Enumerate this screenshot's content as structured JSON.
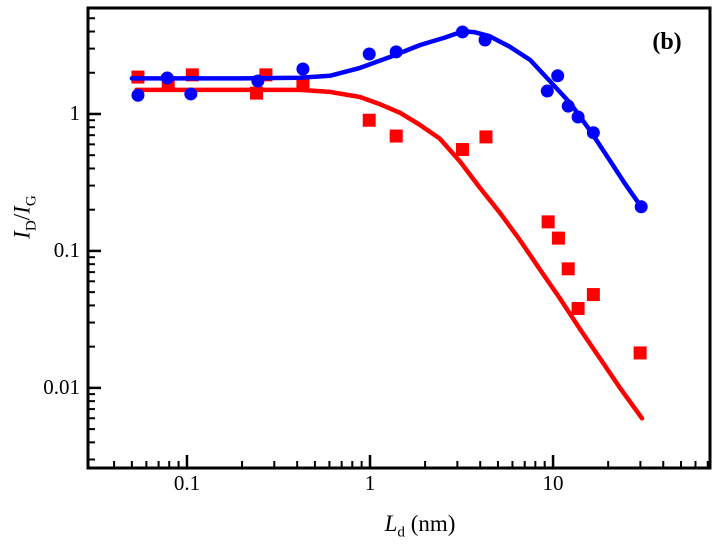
{
  "figure": {
    "panel_label": "(b)",
    "background_color": "#ffffff",
    "axis_color": "#000000"
  },
  "chart_data": {
    "type": "scatter",
    "title": "",
    "xlabel": "L_d (nm)",
    "ylabel": "I_D/I_G",
    "xlabel_parts": {
      "symbol": "L",
      "sub": "d",
      "unit": " (nm)"
    },
    "ylabel_parts": {
      "num": "I",
      "num_sub": "D",
      "slash": "/",
      "den": "I",
      "den_sub": "G"
    },
    "xscale": "log",
    "yscale": "log",
    "xlim": [
      0.0288,
      72
    ],
    "ylim": [
      0.0026,
      5.94
    ],
    "grid": false,
    "legend": "none",
    "x_major_ticks": [
      {
        "value": 0.1,
        "label": "0.1"
      },
      {
        "value": 1,
        "label": "1"
      },
      {
        "value": 10,
        "label": "10"
      }
    ],
    "x_minor_ticks": [
      0.04,
      0.05,
      0.06,
      0.07,
      0.08,
      0.09,
      0.2,
      0.3,
      0.4,
      0.5,
      0.6,
      0.7,
      0.8,
      0.9,
      2,
      3,
      4,
      5,
      6,
      7,
      8,
      9,
      20,
      30,
      40,
      50,
      60,
      70
    ],
    "y_major_ticks": [
      {
        "value": 1,
        "label": "1"
      },
      {
        "value": 0.1,
        "label": "0.1"
      },
      {
        "value": 0.01,
        "label": "0.01"
      }
    ],
    "y_minor_ticks": [
      0.003,
      0.004,
      0.005,
      0.006,
      0.007,
      0.008,
      0.009,
      0.02,
      0.03,
      0.04,
      0.05,
      0.06,
      0.07,
      0.08,
      0.09,
      0.2,
      0.3,
      0.4,
      0.5,
      0.6,
      0.7,
      0.8,
      0.9,
      2,
      3,
      4,
      5
    ],
    "series": [
      {
        "name": "red-squares-data",
        "type": "scatter",
        "marker": "square",
        "color": "#ff0000",
        "points": [
          [
            0.054,
            1.86
          ],
          [
            0.079,
            1.66
          ],
          [
            0.107,
            1.93
          ],
          [
            0.24,
            1.42
          ],
          [
            0.27,
            1.93
          ],
          [
            0.43,
            1.66
          ],
          [
            0.99,
            0.9
          ],
          [
            1.39,
            0.69
          ],
          [
            3.2,
            0.55
          ],
          [
            4.3,
            0.68
          ],
          [
            9.4,
            0.163
          ],
          [
            10.7,
            0.124
          ],
          [
            12.1,
            0.074
          ],
          [
            13.7,
            0.038
          ],
          [
            16.6,
            0.048
          ],
          [
            29.9,
            0.018
          ]
        ]
      },
      {
        "name": "red-fit-curve",
        "type": "line",
        "color": "#ff0000",
        "points": [
          [
            0.053,
            1.5
          ],
          [
            0.1,
            1.5
          ],
          [
            0.2,
            1.5
          ],
          [
            0.3,
            1.5
          ],
          [
            0.414,
            1.5
          ],
          [
            0.604,
            1.45
          ],
          [
            0.882,
            1.33
          ],
          [
            1.13,
            1.18
          ],
          [
            1.46,
            1.02
          ],
          [
            1.88,
            0.83
          ],
          [
            2.41,
            0.66
          ],
          [
            3.1,
            0.45
          ],
          [
            3.98,
            0.29
          ],
          [
            5.12,
            0.19
          ],
          [
            6.59,
            0.12
          ],
          [
            8.48,
            0.073
          ],
          [
            10.9,
            0.045
          ],
          [
            14.0,
            0.027
          ],
          [
            18.0,
            0.0165
          ],
          [
            23.2,
            0.01
          ],
          [
            30.6,
            0.006
          ]
        ]
      },
      {
        "name": "blue-fit-curve",
        "type": "line",
        "color": "#0000ff",
        "points": [
          [
            0.05,
            1.82
          ],
          [
            0.1,
            1.82
          ],
          [
            0.2,
            1.82
          ],
          [
            0.3,
            1.83
          ],
          [
            0.414,
            1.84
          ],
          [
            0.604,
            1.9
          ],
          [
            0.882,
            2.17
          ],
          [
            1.29,
            2.61
          ],
          [
            1.88,
            3.19
          ],
          [
            2.57,
            3.62
          ],
          [
            3.0,
            3.88
          ],
          [
            3.35,
            4.0
          ],
          [
            3.75,
            3.95
          ],
          [
            4.5,
            3.7
          ],
          [
            5.8,
            3.1
          ],
          [
            7.5,
            2.48
          ],
          [
            9.6,
            1.74
          ],
          [
            12.4,
            1.2
          ],
          [
            15.9,
            0.76
          ],
          [
            20.4,
            0.46
          ],
          [
            24.7,
            0.31
          ],
          [
            30.3,
            0.21
          ]
        ]
      },
      {
        "name": "blue-circles-data",
        "type": "scatter",
        "marker": "circle",
        "color": "#0000ff",
        "points": [
          [
            0.054,
            1.37
          ],
          [
            0.078,
            1.83
          ],
          [
            0.105,
            1.4
          ],
          [
            0.244,
            1.74
          ],
          [
            0.43,
            2.13
          ],
          [
            0.99,
            2.74
          ],
          [
            1.39,
            2.84
          ],
          [
            3.2,
            3.97
          ],
          [
            4.25,
            3.47
          ],
          [
            9.3,
            1.47
          ],
          [
            10.6,
            1.9
          ],
          [
            12.1,
            1.14
          ],
          [
            13.7,
            0.95
          ],
          [
            16.6,
            0.73
          ],
          [
            30.3,
            0.21
          ]
        ]
      }
    ]
  }
}
